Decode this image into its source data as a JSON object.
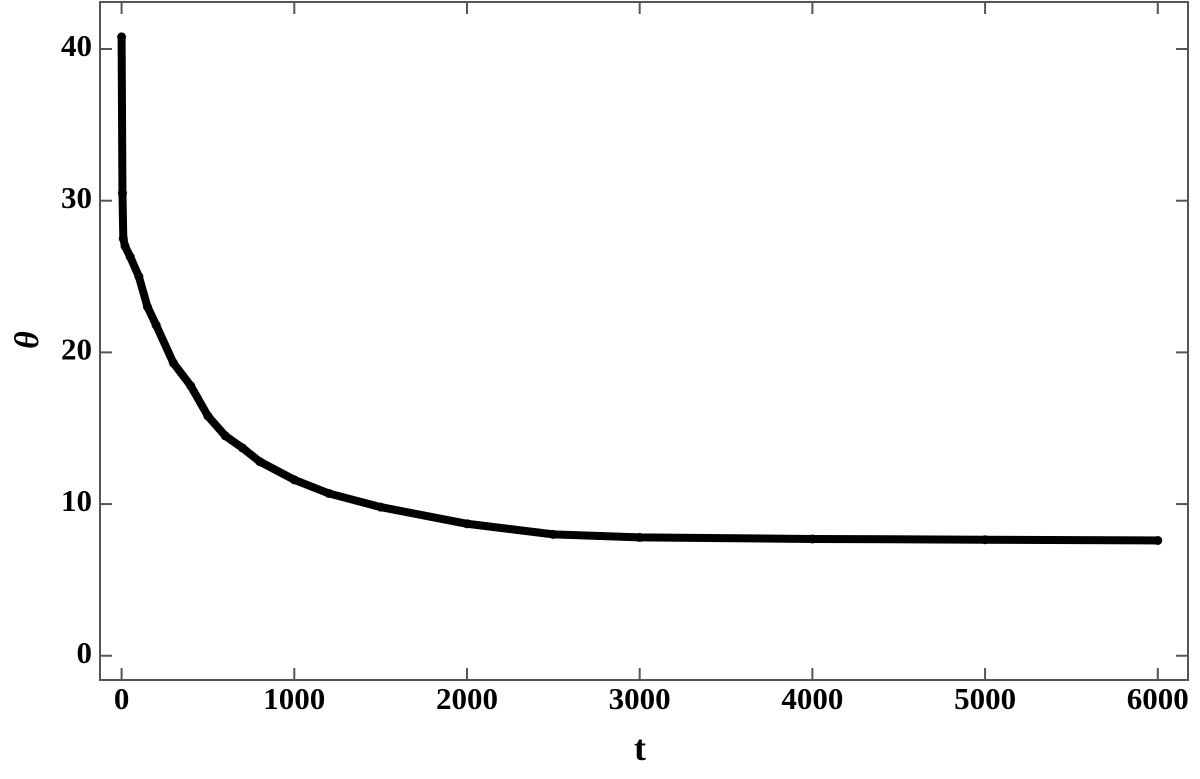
{
  "chart_data": {
    "type": "line",
    "x_label": "t",
    "y_label": "θ",
    "x": [
      0,
      5,
      10,
      20,
      50,
      100,
      150,
      200,
      300,
      400,
      500,
      600,
      700,
      800,
      1000,
      1200,
      1500,
      2000,
      2500,
      3000,
      4000,
      5000,
      6000
    ],
    "series": [
      {
        "color": "#000000",
        "values": [
          40.8,
          30.5,
          27.5,
          27.0,
          26.3,
          25.0,
          23.0,
          21.8,
          19.3,
          17.8,
          15.8,
          14.5,
          13.7,
          12.8,
          11.6,
          10.7,
          9.8,
          8.7,
          8.0,
          7.8,
          7.7,
          7.65,
          7.6
        ]
      }
    ],
    "xlim": [
      -125,
      6175
    ],
    "ylim": [
      -1.6,
      43.1
    ],
    "xticks": [
      0,
      1000,
      2000,
      3000,
      4000,
      5000,
      6000
    ],
    "yticks": [
      0,
      10,
      20,
      30,
      40
    ]
  }
}
